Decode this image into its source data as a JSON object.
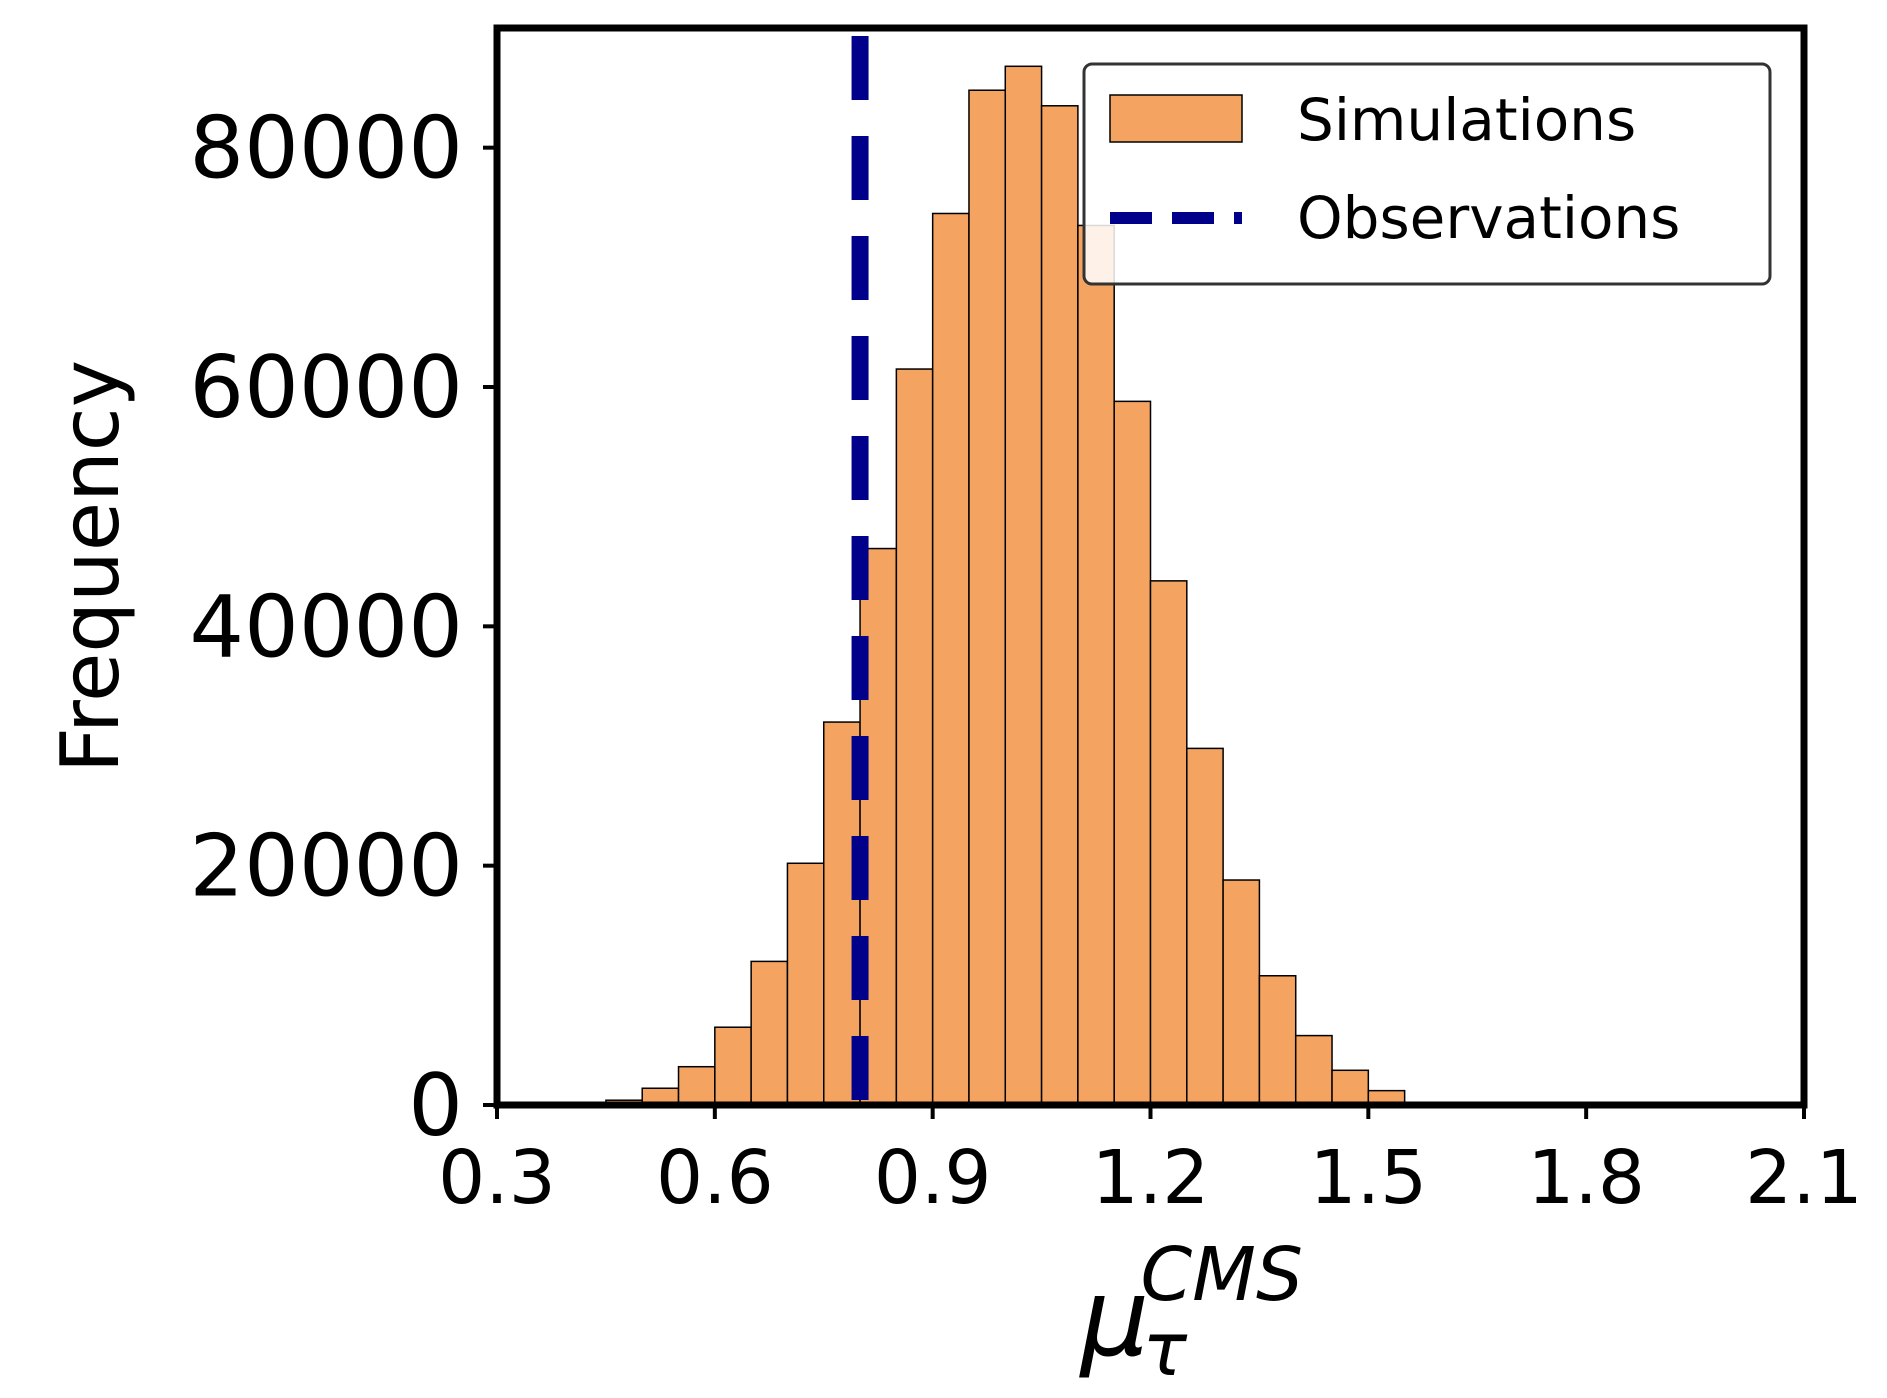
{
  "chart_data": {
    "type": "bar",
    "bin_edges": [
      0.45,
      0.5,
      0.55,
      0.6,
      0.65,
      0.7,
      0.75,
      0.8,
      0.85,
      0.9,
      0.95,
      1.0,
      1.05,
      1.1,
      1.15,
      1.2,
      1.25,
      1.3,
      1.35,
      1.4,
      1.45,
      1.5,
      1.55
    ],
    "values": [
      400,
      1400,
      3200,
      6500,
      12000,
      20200,
      32000,
      46500,
      61500,
      74500,
      84800,
      86800,
      83500,
      73500,
      58800,
      43800,
      29800,
      18800,
      10800,
      5800,
      2900,
      1200,
      400
    ],
    "series_name": "Simulations",
    "bar_color": "#F4A460",
    "bar_edge_color": "#000000",
    "observation": {
      "name": "Observations",
      "x": 0.8,
      "color": "#00008B",
      "style": "dashed"
    },
    "xlabel": {
      "base": "μ",
      "subscript": "τ",
      "superscript": "CMS"
    },
    "ylabel": "Frequency",
    "xlim": [
      0.3,
      2.1
    ],
    "ylim": [
      0,
      90000
    ],
    "xticks": [
      "0.3",
      "0.6",
      "0.9",
      "1.2",
      "1.5",
      "1.8",
      "2.1"
    ],
    "yticks": [
      "0",
      "20000",
      "40000",
      "60000",
      "80000"
    ],
    "legend_position": "top-right"
  }
}
